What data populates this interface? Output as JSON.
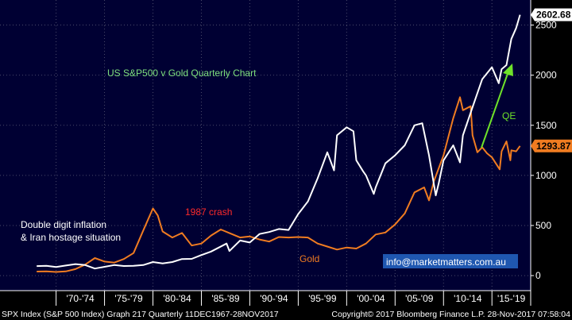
{
  "chart_data": {
    "type": "line",
    "title": "US S&P500 v Gold Quarterly Chart",
    "xlabel": "",
    "ylabel": "",
    "ylim": [
      -150,
      2750
    ],
    "xlim": [
      1967.9,
      2019.0
    ],
    "y_ticks": [
      "0",
      "500",
      "1000",
      "1500",
      "2000",
      "2500"
    ],
    "y_tick_values": [
      0,
      500,
      1000,
      1500,
      2000,
      2500
    ],
    "x_ticks": [
      "'70-'74",
      "'75-'79",
      "'80-'84",
      "'85-'89",
      "'90-'94",
      "'95-'99",
      "'00-'04",
      "'05-'09",
      "'10-'14",
      "'15-'19"
    ],
    "grid": true,
    "legend": "none",
    "series": [
      {
        "name": "S&P 500",
        "color": "#ffffff",
        "last_value_label": "2602.68",
        "points": [
          [
            1968,
            95
          ],
          [
            1969,
            98
          ],
          [
            1970,
            85
          ],
          [
            1971,
            100
          ],
          [
            1972,
            115
          ],
          [
            1973,
            105
          ],
          [
            1974,
            70
          ],
          [
            1975,
            88
          ],
          [
            1976,
            105
          ],
          [
            1977,
            96
          ],
          [
            1978,
            98
          ],
          [
            1979,
            105
          ],
          [
            1980,
            135
          ],
          [
            1981,
            122
          ],
          [
            1982,
            135
          ],
          [
            1983,
            165
          ],
          [
            1984,
            167
          ],
          [
            1985,
            205
          ],
          [
            1986,
            240
          ],
          [
            1987.6,
            320
          ],
          [
            1987.9,
            245
          ],
          [
            1989,
            350
          ],
          [
            1990,
            330
          ],
          [
            1991,
            415
          ],
          [
            1992,
            435
          ],
          [
            1993,
            465
          ],
          [
            1994,
            455
          ],
          [
            1995,
            615
          ],
          [
            1996,
            740
          ],
          [
            1997,
            970
          ],
          [
            1998,
            1230
          ],
          [
            1998.7,
            1050
          ],
          [
            1999,
            1400
          ],
          [
            2000,
            1480
          ],
          [
            2000.7,
            1440
          ],
          [
            2001,
            1150
          ],
          [
            2001.7,
            1040
          ],
          [
            2002,
            1000
          ],
          [
            2002.8,
            815
          ],
          [
            2003,
            880
          ],
          [
            2004,
            1120
          ],
          [
            2005,
            1200
          ],
          [
            2006,
            1300
          ],
          [
            2007,
            1500
          ],
          [
            2007.8,
            1520
          ],
          [
            2008.5,
            1200
          ],
          [
            2009.2,
            800
          ],
          [
            2009.5,
            920
          ],
          [
            2010,
            1150
          ],
          [
            2011,
            1300
          ],
          [
            2011.7,
            1130
          ],
          [
            2012,
            1400
          ],
          [
            2013,
            1680
          ],
          [
            2014,
            1960
          ],
          [
            2015,
            2080
          ],
          [
            2015.7,
            1920
          ],
          [
            2016,
            2060
          ],
          [
            2016.5,
            2100
          ],
          [
            2017,
            2360
          ],
          [
            2017.5,
            2470
          ],
          [
            2017.9,
            2602.68
          ]
        ]
      },
      {
        "name": "Gold",
        "color": "#f07c21",
        "last_value_label": "1293.87",
        "points": [
          [
            1968,
            40
          ],
          [
            1969,
            42
          ],
          [
            1970,
            36
          ],
          [
            1971,
            42
          ],
          [
            1972,
            65
          ],
          [
            1973,
            110
          ],
          [
            1974,
            175
          ],
          [
            1975,
            140
          ],
          [
            1976,
            130
          ],
          [
            1977,
            165
          ],
          [
            1978,
            225
          ],
          [
            1979,
            450
          ],
          [
            1980,
            670
          ],
          [
            1980.5,
            600
          ],
          [
            1981,
            440
          ],
          [
            1982,
            380
          ],
          [
            1983,
            425
          ],
          [
            1984,
            300
          ],
          [
            1985,
            320
          ],
          [
            1986,
            400
          ],
          [
            1987,
            460
          ],
          [
            1988,
            420
          ],
          [
            1989,
            380
          ],
          [
            1990,
            390
          ],
          [
            1991,
            360
          ],
          [
            1992,
            340
          ],
          [
            1993,
            385
          ],
          [
            1994,
            380
          ],
          [
            1995,
            385
          ],
          [
            1996,
            380
          ],
          [
            1997,
            320
          ],
          [
            1998,
            290
          ],
          [
            1999,
            260
          ],
          [
            2000,
            280
          ],
          [
            2001,
            270
          ],
          [
            2002,
            320
          ],
          [
            2003,
            410
          ],
          [
            2004,
            430
          ],
          [
            2005,
            510
          ],
          [
            2006,
            620
          ],
          [
            2007,
            830
          ],
          [
            2008,
            880
          ],
          [
            2008.5,
            750
          ],
          [
            2009,
            940
          ],
          [
            2010,
            1200
          ],
          [
            2011,
            1570
          ],
          [
            2011.7,
            1780
          ],
          [
            2012,
            1650
          ],
          [
            2012.8,
            1690
          ],
          [
            2013,
            1400
          ],
          [
            2013.5,
            1230
          ],
          [
            2014,
            1280
          ],
          [
            2014.5,
            1220
          ],
          [
            2015,
            1180
          ],
          [
            2015.8,
            1060
          ],
          [
            2016,
            1240
          ],
          [
            2016.5,
            1340
          ],
          [
            2016.9,
            1150
          ],
          [
            2017,
            1250
          ],
          [
            2017.5,
            1240
          ],
          [
            2017.9,
            1293.87
          ]
        ]
      }
    ],
    "annotations": {
      "title_text": "US S&P500 v Gold Quarterly Chart",
      "inflation_line1": "Double digit inflation",
      "inflation_line2": "& Iran hostage situation",
      "crash": "1987 crash",
      "gold": "Gold",
      "qe": "QE",
      "contact": "info@marketmatters.com.au"
    },
    "footer": {
      "left": "SPX Index (S&P 500 Index) Graph 217  Quarterly 11DEC1967-28NOV2017",
      "right": "Copyright© 2017 Bloomberg Finance L.P.  28-Nov-2017 07:58:04"
    },
    "colors": {
      "background": "#000033",
      "outer": "#000000",
      "grid": "#4a4a6a",
      "spx": "#ffffff",
      "gold": "#f07c21",
      "title": "#7ee07e",
      "crash": "#ff2a2a",
      "qe_arrow": "#6fe22a",
      "contact_bg": "#1f57b0"
    }
  }
}
